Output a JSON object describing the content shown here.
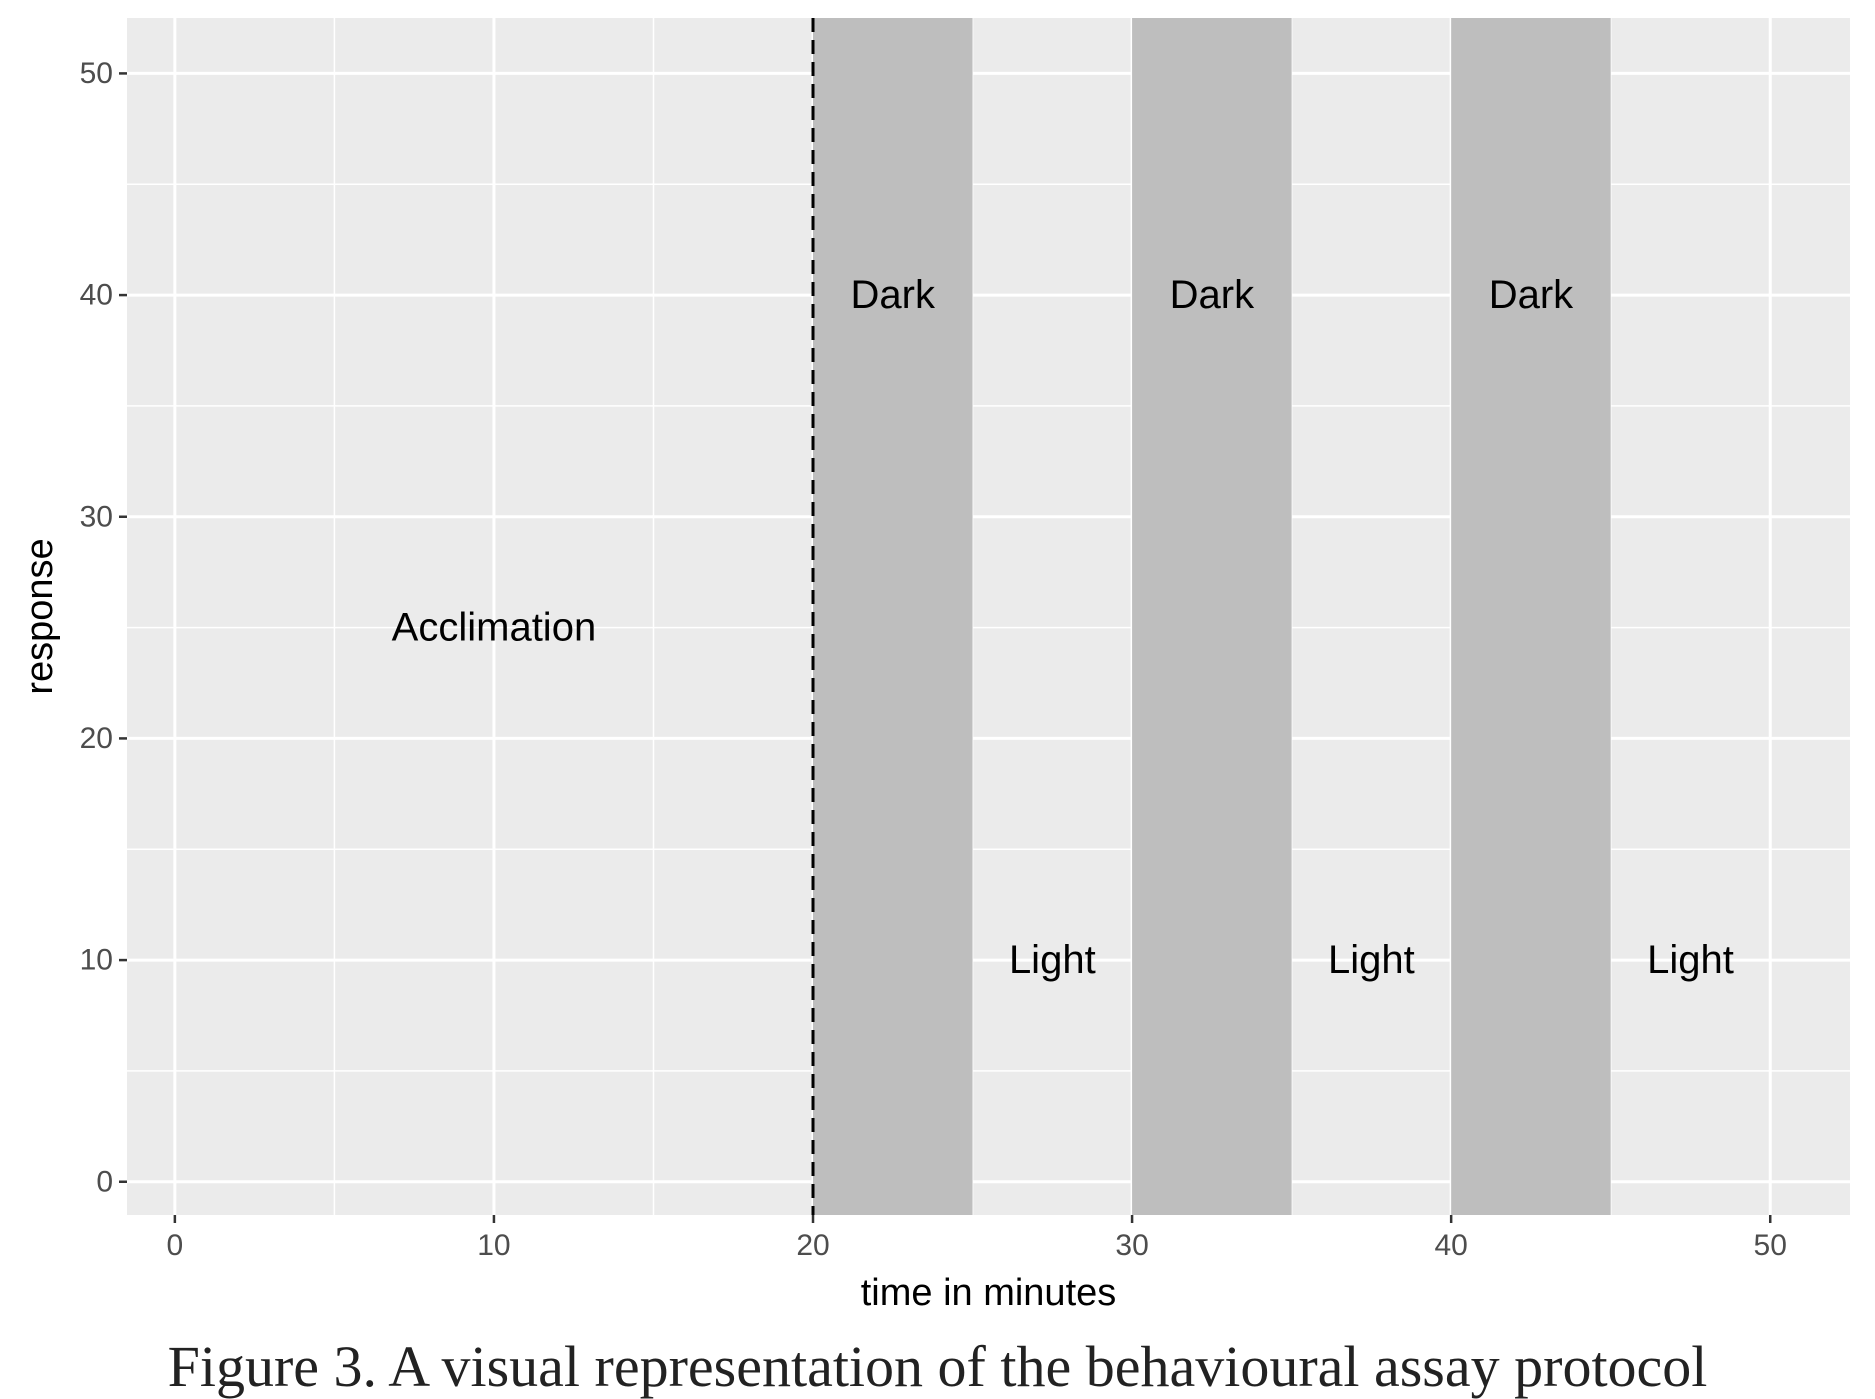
{
  "chart_data": {
    "type": "area",
    "xlabel": "time in minutes",
    "ylabel": "response",
    "xlim": [
      -1.5,
      52.5
    ],
    "ylim": [
      -1.5,
      52.5
    ],
    "x_ticks": [
      0,
      10,
      20,
      30,
      40,
      50
    ],
    "y_ticks": [
      0,
      10,
      20,
      30,
      40,
      50
    ],
    "grid": true,
    "dark_periods": [
      {
        "label": "Dark",
        "start": 20,
        "end": 25
      },
      {
        "label": "Dark",
        "start": 30,
        "end": 35
      },
      {
        "label": "Dark",
        "start": 40,
        "end": 45
      }
    ],
    "reference_lines": [
      {
        "x": 20,
        "style": "dashed"
      }
    ],
    "annotations": [
      {
        "text": "Acclimation",
        "x": 10,
        "y": 25
      },
      {
        "text": "Dark",
        "x": 22.5,
        "y": 40
      },
      {
        "text": "Dark",
        "x": 32.5,
        "y": 40
      },
      {
        "text": "Dark",
        "x": 42.5,
        "y": 40
      },
      {
        "text": "Light",
        "x": 27.5,
        "y": 10
      },
      {
        "text": "Light",
        "x": 37.5,
        "y": 10
      },
      {
        "text": "Light",
        "x": 47.5,
        "y": 10
      }
    ],
    "colors": {
      "panel": "#ebebeb",
      "grid": "#ffffff",
      "shade": "#bebebe",
      "reference_line": "#000000"
    }
  },
  "caption": "Figure 3. A visual representation of the behavioural assay protocol"
}
